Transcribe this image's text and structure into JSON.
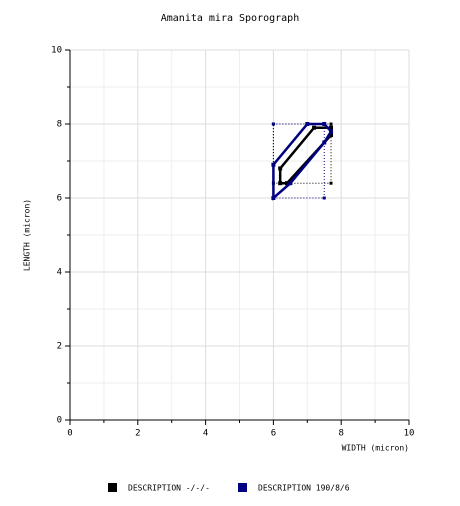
{
  "chart_data": {
    "type": "polygon",
    "title": "Amanita mira Sporograph",
    "x_label": "WIDTH (micron)",
    "y_label": "LENGTH (micron)",
    "xlim": [
      0,
      10
    ],
    "ylim": [
      0,
      10
    ],
    "xticks": [
      0,
      2,
      4,
      6,
      8,
      10
    ],
    "yticks": [
      0,
      2,
      4,
      6,
      8,
      10
    ],
    "grid": true,
    "legend": "bottom",
    "series": [
      {
        "name": "DESCRIPTION -/-/-",
        "color": "#000000",
        "x": [
          6.2,
          6.2,
          7.2,
          7.7,
          7.7,
          6.4
        ],
        "y": [
          6.4,
          6.8,
          7.9,
          7.9,
          7.7,
          6.4
        ],
        "range_x": [
          6,
          7.7
        ],
        "range_y": [
          6.4,
          8
        ]
      },
      {
        "name": "DESCRIPTION 190/8/6",
        "color": "#000080",
        "x": [
          6,
          6,
          7,
          7.5,
          7.7,
          7.5,
          6.5
        ],
        "y": [
          6,
          6.9,
          8,
          8,
          7.8,
          7.5,
          6.4
        ],
        "range_x": [
          6,
          7.5
        ],
        "range_y": [
          6,
          8
        ]
      }
    ]
  }
}
